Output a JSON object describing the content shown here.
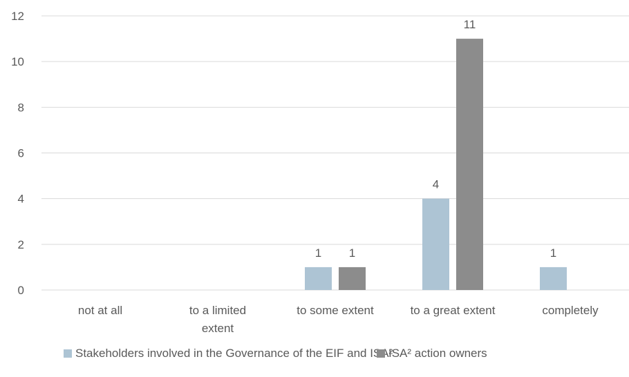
{
  "chart_data": {
    "type": "bar",
    "categories": [
      [
        "not at all"
      ],
      [
        "to a limited",
        "extent"
      ],
      [
        "to some extent"
      ],
      [
        "to a great extent"
      ],
      [
        "completely"
      ]
    ],
    "series": [
      {
        "name": "Stakeholders involved in the Governance of the EIF and ISA²",
        "color": "#adc4d4",
        "values": [
          null,
          null,
          1,
          4,
          1
        ]
      },
      {
        "name": "ISA² action owners",
        "color": "#8c8c8c",
        "values": [
          null,
          null,
          1,
          11,
          null
        ]
      }
    ],
    "ylim": [
      0,
      12
    ],
    "yticks": [
      0,
      2,
      4,
      6,
      8,
      10,
      12
    ],
    "grid": true,
    "legend": "bottom"
  }
}
